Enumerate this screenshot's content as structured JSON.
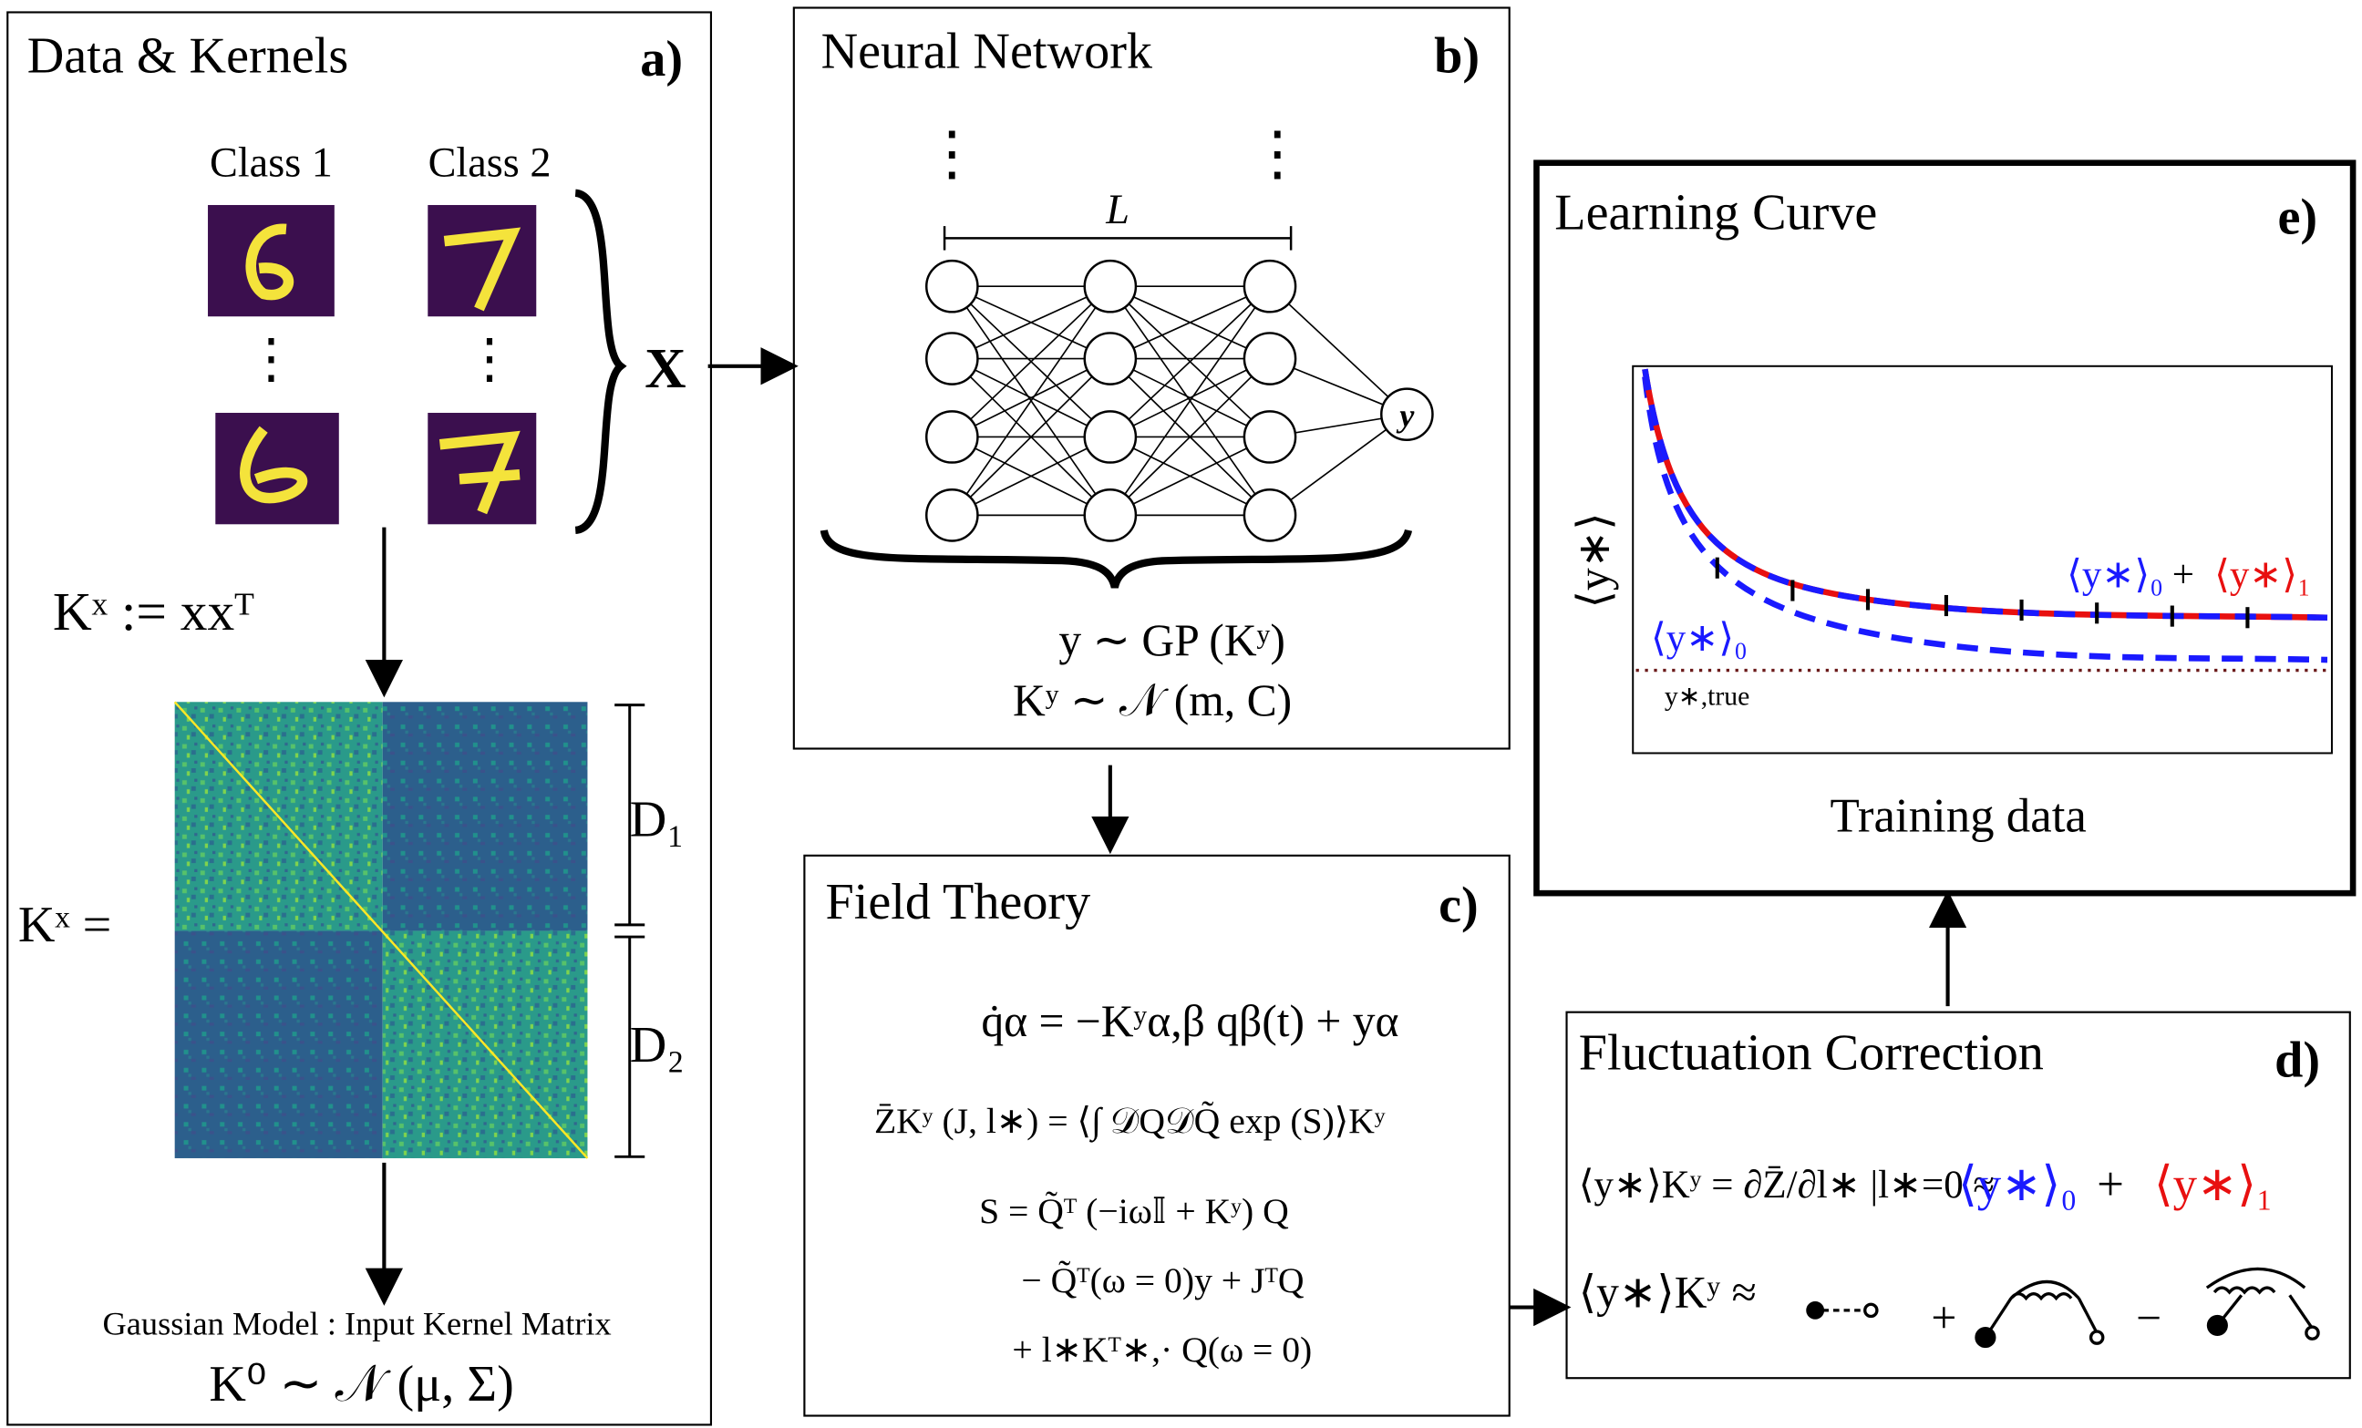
{
  "panels": {
    "a": {
      "title": "Data & Kernels",
      "label": "a)",
      "classes": [
        "Class 1",
        "Class 2"
      ],
      "input": "X",
      "kernel_def": "Kˣ := xxᵀ",
      "kernel_lhs": "Kˣ =",
      "blocks": [
        "D₁",
        "D₂"
      ],
      "model_caption": "Gaussian Model  :  Input Kernel Matrix",
      "model": "K⁰ ∼ 𝒩 (μ, Σ)"
    },
    "b": {
      "title": "Neural Network",
      "label": "b)",
      "depth": "L",
      "output": "y",
      "prior": "y ∼ GP (Kʸ)",
      "kernel_prior": "Kʸ ∼ 𝒩 (m, C)"
    },
    "c": {
      "title": "Field Theory",
      "label": "c)",
      "equations": [
        "q̇α = −Kʸα,β qβ(t) + yα",
        "Z̄Kʸ (J, l∗) = ⟨∫ 𝒟Q𝒟Q̃ exp (S)⟩Kʸ",
        "S = Q̃ᵀ (−iω𝕀 + Kʸ) Q",
        "− Q̃ᵀ(ω = 0)y + JᵀQ",
        "+ l∗Kᵀ∗,· Q(ω = 0)"
      ]
    },
    "d": {
      "title": "Fluctuation Correction",
      "label": "d)",
      "lhs": "⟨y∗⟩Kʸ = ∂Z̄/∂l∗ |l∗=0 ≈",
      "term0": "⟨y∗⟩₀",
      "plus": "+",
      "term1": "⟨y∗⟩₁",
      "diagram_lhs": "⟨y∗⟩Kʸ ≈",
      "diagram_ops": [
        "+",
        "−"
      ]
    },
    "e": {
      "title": "Learning Curve",
      "label": "e)",
      "y_label": "⟨y∗⟩",
      "x_label": "Training data",
      "curve_full": [
        "⟨y∗⟩₀",
        "+",
        "⟨y∗⟩₁"
      ],
      "curve_zero": "⟨y∗⟩₀",
      "baseline": "y∗,true"
    }
  }
}
